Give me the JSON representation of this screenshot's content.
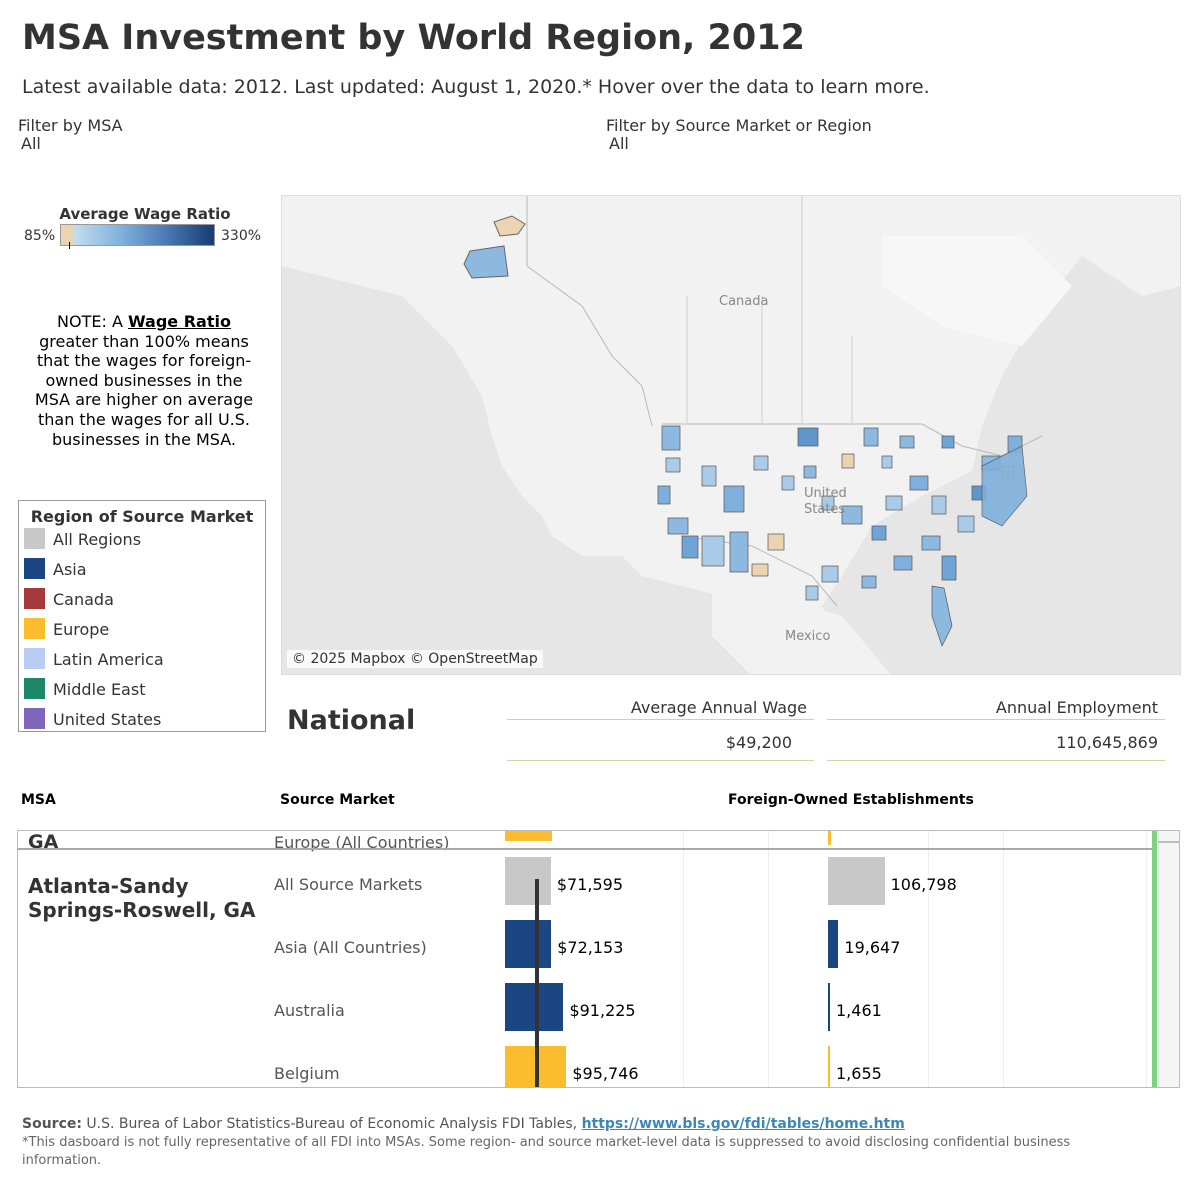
{
  "header": {
    "title": "MSA Investment by World Region, 2012",
    "subtitle": "Latest available data: 2012. Last updated: August 1, 2020.* Hover over the data to learn more."
  },
  "filters": {
    "msa_label": "Filter by MSA",
    "msa_value": "All",
    "source_label": "Filter by Source Market or Region",
    "source_value": "All"
  },
  "color_scale": {
    "title": "Average Wage Ratio",
    "min": "85%",
    "max": "330%",
    "colors": [
      "#ecd3b1",
      "#bfdcef",
      "#4877b2",
      "#173c70"
    ]
  },
  "note": {
    "prefix": "NOTE: A ",
    "term": "Wage Ratio",
    "text": " greater than 100% means that the wages for foreign-owned businesses in the MSA are higher on average than the wages for all U.S. businesses in the MSA."
  },
  "legend": {
    "title": "Region of Source Market",
    "items": [
      {
        "label": "All Regions",
        "color": "#c8c8c8"
      },
      {
        "label": "Asia",
        "color": "#1b4583"
      },
      {
        "label": "Canada",
        "color": "#a63a3a"
      },
      {
        "label": "Europe",
        "color": "#fbbd2e"
      },
      {
        "label": "Latin America",
        "color": "#b8cdf1"
      },
      {
        "label": "Middle East",
        "color": "#1e8669"
      },
      {
        "label": "United States",
        "color": "#8165bb"
      }
    ]
  },
  "map": {
    "labels": {
      "canada": "Canada",
      "united_states": "United States",
      "mexico": "Mexico"
    },
    "credit": "© 2025 Mapbox © OpenStreetMap"
  },
  "national": {
    "label": "National",
    "wage_label": "Average Annual Wage",
    "wage_value": "$49,200",
    "employment_label": "Annual Employment",
    "employment_value": "110,645,869"
  },
  "table": {
    "col_msa": "MSA",
    "col_source": "Source Market",
    "col_establishments": "Foreign-Owned Establishments",
    "prev_msa": "GA",
    "prev_row": "Europe (All Countries)",
    "msa_line1": "Atlanta-Sandy",
    "msa_line2": "Springs-Roswell, GA",
    "rows": [
      {
        "source": "All Source Markets",
        "wage": "$71,595",
        "establishments": "106,798",
        "color": "#c8c8c8"
      },
      {
        "source": "Asia (All Countries)",
        "wage": "$72,153",
        "establishments": "19,647",
        "color": "#1b4583"
      },
      {
        "source": "Australia",
        "wage": "$91,225",
        "establishments": "1,461",
        "color": "#1b4583"
      },
      {
        "source": "Belgium",
        "wage": "$95,746",
        "establishments": "1,655",
        "color": "#fbbd2e"
      }
    ]
  },
  "chart_data": {
    "type": "bar",
    "categories": [
      "All Source Markets",
      "Asia (All Countries)",
      "Australia",
      "Belgium"
    ],
    "series": [
      {
        "name": "Average Annual Wage",
        "values": [
          71595,
          72153,
          91225,
          95746
        ]
      },
      {
        "name": "Foreign-Owned Establishments",
        "values": [
          106798,
          19647,
          1461,
          1655
        ]
      }
    ],
    "reference_line": {
      "label": "National",
      "value": 49200
    }
  },
  "footer": {
    "source_label": "Source:",
    "source_text": " U.S. Burea of Labor Statistics-Bureau of Economic Analysis FDI Tables, ",
    "source_link": "https://www.bls.gov/fdi/tables/home.htm",
    "note": "*This dasboard is not fully representative of all FDI into MSAs. Some region- and source market-level data is suppressed to avoid disclosing confidential business information."
  }
}
